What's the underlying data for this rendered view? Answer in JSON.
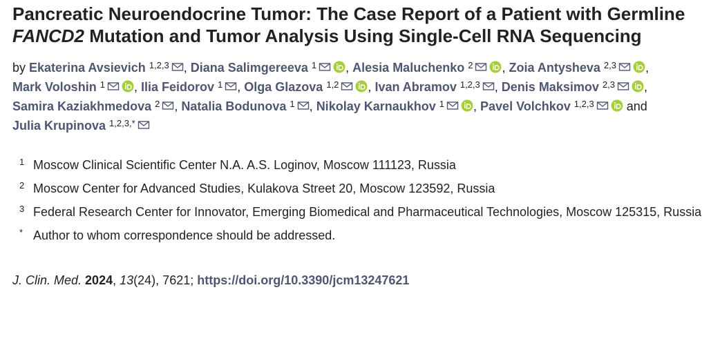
{
  "title": {
    "parts": [
      {
        "text": "Pancreatic Neuroendocrine Tumor: The Case Report of a Patient with Germline ",
        "italic": false
      },
      {
        "text": "FANCD2",
        "italic": true
      },
      {
        "text": " Mutation and Tumor Analysis Using Single-Cell RNA Sequencing",
        "italic": false
      }
    ]
  },
  "byline": {
    "by": "by",
    "separator": ",",
    "and": "and",
    "authors": [
      {
        "name": "Ekaterina Avsievich",
        "sup": "1,2,3",
        "email": true,
        "orcid": false
      },
      {
        "name": "Diana Salimgereeva",
        "sup": "1",
        "email": true,
        "orcid": true
      },
      {
        "name": "Alesia Maluchenko",
        "sup": "2",
        "email": true,
        "orcid": true
      },
      {
        "name": "Zoia Antysheva",
        "sup": "2,3",
        "email": true,
        "orcid": true
      },
      {
        "name": "Mark Voloshin",
        "sup": "1",
        "email": true,
        "orcid": true
      },
      {
        "name": "Ilia Feidorov",
        "sup": "1",
        "email": true,
        "orcid": false
      },
      {
        "name": "Olga Glazova",
        "sup": "1,2",
        "email": true,
        "orcid": true
      },
      {
        "name": "Ivan Abramov",
        "sup": "1,2,3",
        "email": true,
        "orcid": false
      },
      {
        "name": "Denis Maksimov",
        "sup": "2,3",
        "email": true,
        "orcid": true
      },
      {
        "name": "Samira Kaziakhmedova",
        "sup": "2",
        "email": true,
        "orcid": false
      },
      {
        "name": "Natalia Bodunova",
        "sup": "1",
        "email": true,
        "orcid": false
      },
      {
        "name": "Nikolay Karnaukhov",
        "sup": "1",
        "email": true,
        "orcid": true
      },
      {
        "name": "Pavel Volchkov",
        "sup": "1,2,3",
        "email": true,
        "orcid": true
      },
      {
        "name": "Julia Krupinova",
        "sup": "1,2,3,*",
        "email": true,
        "orcid": false
      }
    ]
  },
  "affiliations": [
    {
      "marker": "1",
      "text": "Moscow Clinical Scientific Center N.A. A.S. Loginov, Moscow 111123, Russia"
    },
    {
      "marker": "2",
      "text": "Moscow Center for Advanced Studies, Kulakova Street 20, Moscow 123592, Russia"
    },
    {
      "marker": "3",
      "text": "Federal Research Center for Innovator, Emerging Biomedical and Pharmaceutical Technologies, Moscow 125315, Russia"
    },
    {
      "marker": "*",
      "text": "Author to whom correspondence should be addressed."
    }
  ],
  "citation": {
    "journal": "J. Clin. Med.",
    "year": "2024",
    "volume": "13",
    "issue": "(24)",
    "article": "7621",
    "separator": ",",
    "terminator": ";",
    "doi": "https://doi.org/10.3390/jcm13247621"
  }
}
